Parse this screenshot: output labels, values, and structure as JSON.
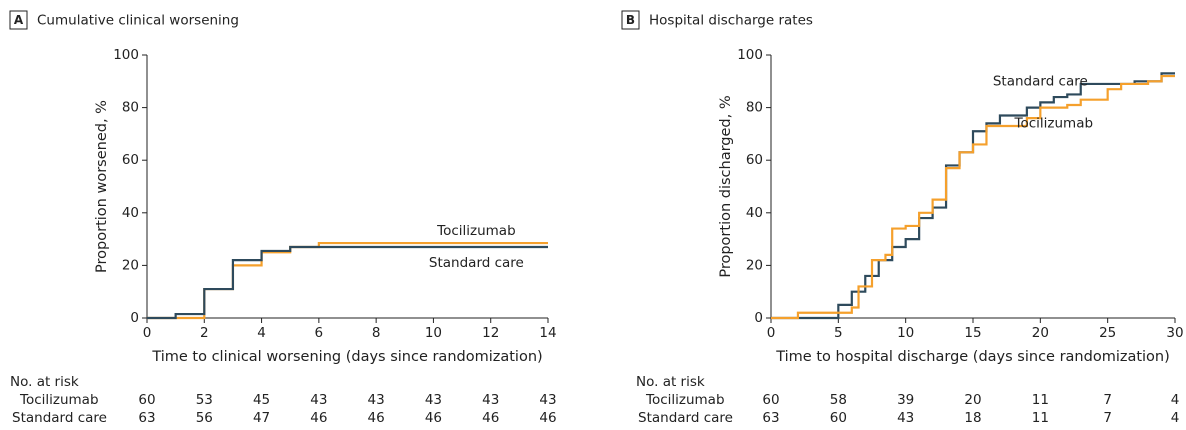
{
  "chart_data": [
    {
      "type": "step",
      "panel_label": "A",
      "title": "Cumulative clinical worsening",
      "xlabel": "Time to clinical worsening (days since randomization)",
      "ylabel": "Proportion worsened, %",
      "xlim": [
        0,
        14
      ],
      "ylim": [
        0,
        100
      ],
      "xticks": [
        0,
        2,
        4,
        6,
        8,
        10,
        12,
        14
      ],
      "yticks": [
        0,
        20,
        40,
        60,
        80,
        100
      ],
      "series": [
        {
          "name": "Tocilizumab",
          "color": "#f5a02c",
          "x": [
            0,
            2,
            3,
            4,
            5,
            6,
            14
          ],
          "values": [
            0,
            11,
            20,
            25,
            27,
            28.5,
            28.5
          ]
        },
        {
          "name": "Standard care",
          "color": "#2e4a5c",
          "x": [
            0,
            1,
            2,
            3,
            4,
            5,
            14
          ],
          "values": [
            0,
            1.5,
            11,
            22,
            25.5,
            27,
            27
          ]
        }
      ],
      "risk_table": {
        "title": "No. at risk",
        "rows": [
          {
            "name": "Tocilizumab",
            "values": [
              60,
              53,
              45,
              43,
              43,
              43,
              43,
              43
            ]
          },
          {
            "name": "Standard care",
            "values": [
              63,
              56,
              47,
              46,
              46,
              46,
              46,
              46
            ]
          }
        ]
      }
    },
    {
      "type": "step",
      "panel_label": "B",
      "title": "Hospital discharge rates",
      "xlabel": "Time to hospital discharge (days since randomization)",
      "ylabel": "Proportion discharged, %",
      "xlim": [
        0,
        30
      ],
      "ylim": [
        0,
        100
      ],
      "xticks": [
        0,
        5,
        10,
        15,
        20,
        25,
        30
      ],
      "yticks": [
        0,
        20,
        40,
        60,
        80,
        100
      ],
      "series": [
        {
          "name": "Standard care",
          "color": "#2e4a5c",
          "x": [
            0,
            5,
            6,
            7,
            8,
            9,
            10,
            11,
            12,
            13,
            14,
            15,
            16,
            17,
            19,
            20,
            21,
            22,
            23,
            27,
            29,
            30
          ],
          "values": [
            0,
            5,
            10,
            16,
            22,
            27,
            30,
            38,
            42,
            58,
            63,
            71,
            74,
            77,
            80,
            82,
            84,
            85,
            89,
            90,
            93,
            93
          ]
        },
        {
          "name": "Tocilizumab",
          "color": "#f5a02c",
          "x": [
            0,
            2,
            6,
            6.5,
            7.5,
            8.5,
            9,
            10,
            11,
            12,
            13,
            14,
            15,
            16,
            19,
            20,
            22,
            23,
            25,
            26,
            28,
            29,
            30
          ],
          "values": [
            0,
            2,
            4,
            12,
            22,
            24,
            34,
            35,
            40,
            45,
            57,
            63,
            66,
            73,
            76,
            80,
            81,
            83,
            87,
            89,
            90,
            92,
            92
          ]
        }
      ],
      "risk_table": {
        "title": "No. at risk",
        "rows": [
          {
            "name": "Tocilizumab",
            "values": [
              60,
              58,
              39,
              20,
              11,
              7,
              4
            ]
          },
          {
            "name": "Standard care",
            "values": [
              63,
              60,
              43,
              18,
              11,
              7,
              4
            ]
          }
        ]
      }
    }
  ]
}
